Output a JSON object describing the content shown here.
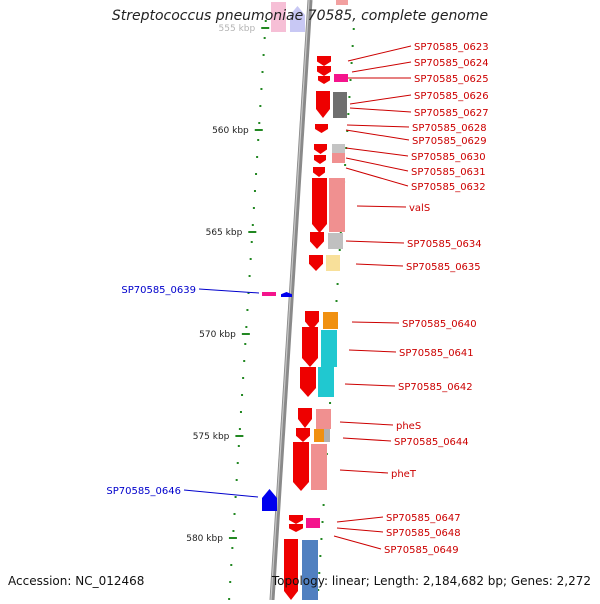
{
  "title": "Streptococcus pneumoniae 70585, complete genome",
  "accession": "Accession: NC_012468",
  "summary": "Topology: linear; Length: 2,184,682 bp; Genes: 2,272",
  "ruler": {
    "ticks": [
      {
        "kbp": 555,
        "label": "555 kbp"
      },
      {
        "kbp": 560,
        "label": "560 kbp"
      },
      {
        "kbp": 565,
        "label": "565 kbp"
      },
      {
        "kbp": 570,
        "label": "570 kbp"
      },
      {
        "kbp": 575,
        "label": "575 kbp"
      },
      {
        "kbp": 580,
        "label": "580 kbp"
      }
    ]
  },
  "genes_right": [
    {
      "label": "SP70585_0623"
    },
    {
      "label": "SP70585_0624"
    },
    {
      "label": "SP70585_0625"
    },
    {
      "label": "SP70585_0626"
    },
    {
      "label": "SP70585_0627"
    },
    {
      "label": "SP70585_0628"
    },
    {
      "label": "SP70585_0629"
    },
    {
      "label": "SP70585_0630"
    },
    {
      "label": "SP70585_0631"
    },
    {
      "label": "SP70585_0632"
    },
    {
      "label": "valS"
    },
    {
      "label": "SP70585_0634"
    },
    {
      "label": "SP70585_0635"
    },
    {
      "label": "SP70585_0640"
    },
    {
      "label": "SP70585_0641"
    },
    {
      "label": "SP70585_0642"
    },
    {
      "label": "pheS"
    },
    {
      "label": "SP70585_0644"
    },
    {
      "label": "pheT"
    },
    {
      "label": "SP70585_0647"
    },
    {
      "label": "SP70585_0648"
    },
    {
      "label": "SP70585_0649"
    }
  ],
  "genes_left": [
    {
      "label": "SP70585_0639"
    },
    {
      "label": "SP70585_0646"
    }
  ],
  "colors": {
    "cds": "#ee0000",
    "label_right": "#cc0000",
    "label_left": "#0000cc",
    "backbone": "#888888",
    "tick": "#228822"
  }
}
